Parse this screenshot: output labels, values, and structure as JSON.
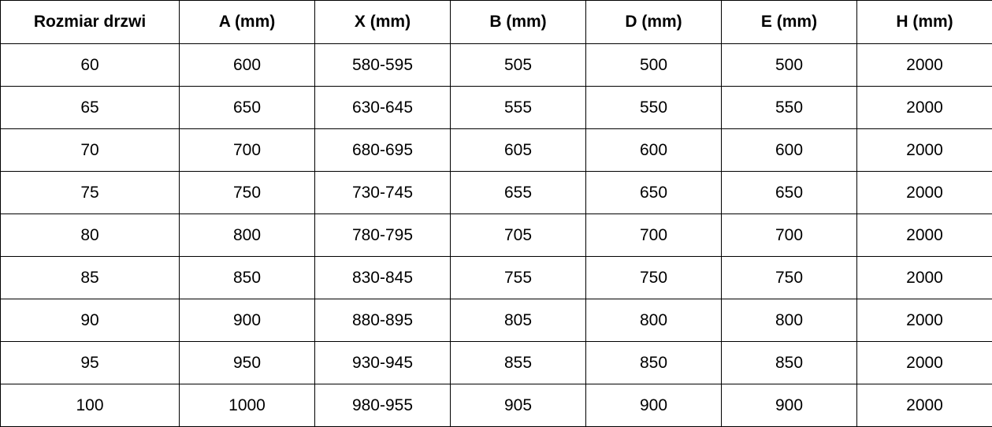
{
  "table": {
    "headers": [
      "Rozmiar drzwi",
      "A (mm)",
      "X (mm)",
      "B (mm)",
      "D (mm)",
      "E (mm)",
      "H (mm)"
    ],
    "rows": [
      [
        "60",
        "600",
        "580-595",
        "505",
        "500",
        "500",
        "2000"
      ],
      [
        "65",
        "650",
        "630-645",
        "555",
        "550",
        "550",
        "2000"
      ],
      [
        "70",
        "700",
        "680-695",
        "605",
        "600",
        "600",
        "2000"
      ],
      [
        "75",
        "750",
        "730-745",
        "655",
        "650",
        "650",
        "2000"
      ],
      [
        "80",
        "800",
        "780-795",
        "705",
        "700",
        "700",
        "2000"
      ],
      [
        "85",
        "850",
        "830-845",
        "755",
        "750",
        "750",
        "2000"
      ],
      [
        "90",
        "900",
        "880-895",
        "805",
        "800",
        "800",
        "2000"
      ],
      [
        "95",
        "950",
        "930-945",
        "855",
        "850",
        "850",
        "2000"
      ],
      [
        "100",
        "1000",
        "980-955",
        "905",
        "900",
        "900",
        "2000"
      ]
    ]
  }
}
